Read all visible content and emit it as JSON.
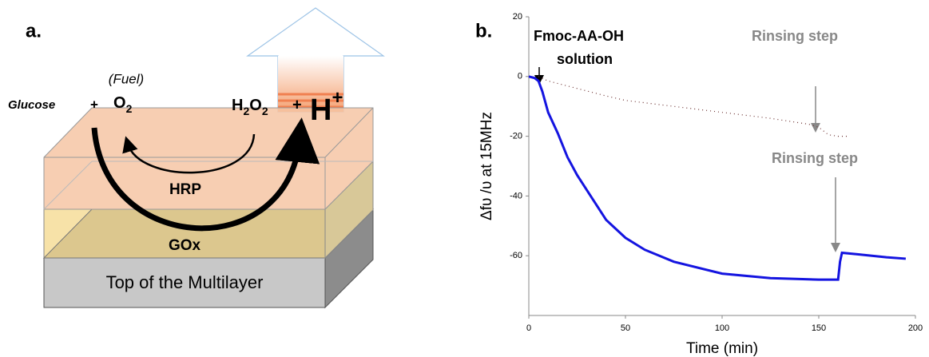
{
  "diagram": {
    "panel_label": "a.",
    "fuel": "(Fuel)",
    "glucose": "Glucose",
    "plus1": "+",
    "o2": {
      "base": "O",
      "sub": "2"
    },
    "h2o2": {
      "b1": "H",
      "s1": "2",
      "b2": "O",
      "s2": "2"
    },
    "plus2": "+",
    "proton": {
      "base": "H",
      "sup": "+"
    },
    "hrp": "HRP",
    "gox": "GOx",
    "base_layer": "Top of the Multilayer"
  },
  "chart_data": {
    "type": "line",
    "panel_label": "b.",
    "xlabel": "Time (min)",
    "ylabel": "Δfυ /υ at 15MHz",
    "xlim": [
      0,
      200
    ],
    "xticks": [
      0,
      50,
      100,
      150,
      200
    ],
    "ylim": [
      -80,
      20
    ],
    "yticks": [
      20,
      0,
      -20,
      -40,
      -60
    ],
    "annotations": [
      "Fmoc-AA-OH",
      "solution",
      "Rinsing step",
      "Rinsing step"
    ],
    "series": [
      {
        "color": "#1414e0",
        "style": "solid",
        "x": [
          0,
          3,
          5,
          7,
          10,
          15,
          20,
          25,
          30,
          40,
          50,
          60,
          75,
          100,
          125,
          150,
          160,
          161,
          162,
          170,
          185,
          195
        ],
        "values": [
          0,
          -0.5,
          -1.5,
          -5,
          -12,
          -19,
          -27,
          -33,
          -38,
          -48,
          -54,
          -58,
          -62,
          -66,
          -67.5,
          -68,
          -68,
          -62,
          -59,
          -59.5,
          -60.5,
          -61
        ]
      },
      {
        "color": "#6b3030",
        "style": "dotted",
        "x": [
          5,
          10,
          25,
          40,
          50,
          75,
          100,
          125,
          145,
          150,
          155,
          160,
          165
        ],
        "values": [
          0,
          -1.5,
          -4,
          -6.5,
          -8,
          -10,
          -12,
          -14,
          -16,
          -17,
          -19.5,
          -20,
          -20
        ]
      }
    ]
  }
}
